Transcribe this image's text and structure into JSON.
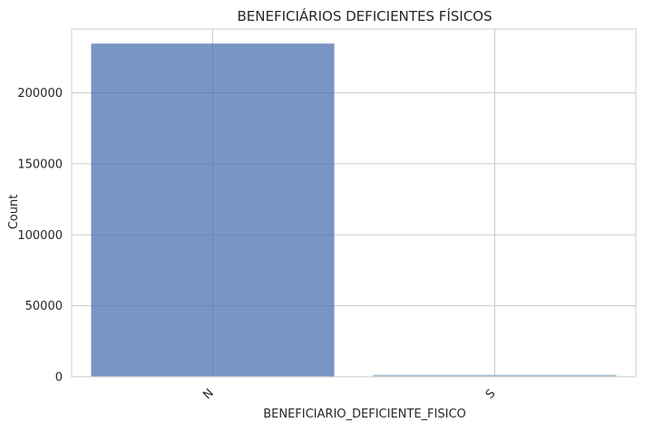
{
  "chart_data": {
    "type": "bar",
    "title": "BENEFICIÁRIOS DEFICIENTES FÍSICOS",
    "xlabel": "BENEFICIARIO_DEFICIENTE_FISICO",
    "ylabel": "Count",
    "categories": [
      "N",
      "S"
    ],
    "values": [
      234500,
      1200
    ],
    "ylim": [
      0,
      245000
    ],
    "yticks": [
      "0",
      "50000",
      "100000",
      "150000",
      "200000"
    ],
    "ytick_values": [
      0,
      50000,
      100000,
      150000,
      200000
    ],
    "grid": true,
    "colors": {
      "bar_fill": "#4c72b0",
      "bar_opacity": "0.75",
      "bar_small": "#a9c1d0",
      "grid": "#cccccc",
      "frame": "#cccccc"
    }
  }
}
